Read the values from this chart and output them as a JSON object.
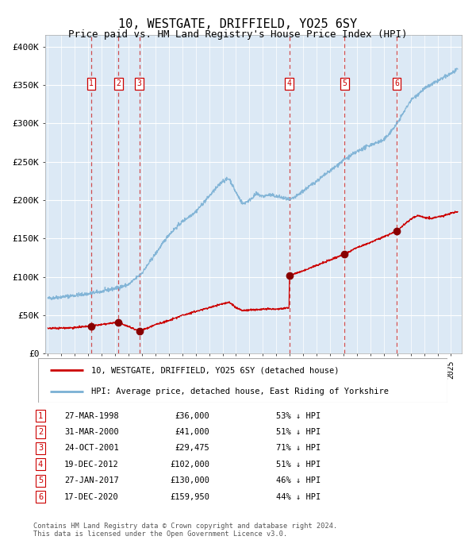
{
  "title": "10, WESTGATE, DRIFFIELD, YO25 6SY",
  "subtitle": "Price paid vs. HM Land Registry's House Price Index (HPI)",
  "title_fontsize": 11,
  "subtitle_fontsize": 9,
  "bg_color": "#dce9f5",
  "grid_color": "#ffffff",
  "ylabel_ticks": [
    "£0",
    "£50K",
    "£100K",
    "£150K",
    "£200K",
    "£250K",
    "£300K",
    "£350K",
    "£400K"
  ],
  "ytick_values": [
    0,
    50000,
    100000,
    150000,
    200000,
    250000,
    300000,
    350000,
    400000
  ],
  "ylim": [
    0,
    415000
  ],
  "xlim_start": 1994.8,
  "xlim_end": 2025.8,
  "legend_line1": "10, WESTGATE, DRIFFIELD, YO25 6SY (detached house)",
  "legend_line2": "HPI: Average price, detached house, East Riding of Yorkshire",
  "legend_color1": "#cc0000",
  "legend_color2": "#7ab0d4",
  "transactions": [
    {
      "num": 1,
      "date_label": "27-MAR-1998",
      "date_x": 1998.23,
      "price": 36000,
      "pct": "53%",
      "label": "1"
    },
    {
      "num": 2,
      "date_label": "31-MAR-2000",
      "date_x": 2000.25,
      "price": 41000,
      "pct": "51%",
      "label": "2"
    },
    {
      "num": 3,
      "date_label": "24-OCT-2001",
      "date_x": 2001.81,
      "price": 29475,
      "pct": "71%",
      "label": "3"
    },
    {
      "num": 4,
      "date_label": "19-DEC-2012",
      "date_x": 2012.97,
      "price": 102000,
      "pct": "51%",
      "label": "4"
    },
    {
      "num": 5,
      "date_label": "27-JAN-2017",
      "date_x": 2017.07,
      "price": 130000,
      "pct": "46%",
      "label": "5"
    },
    {
      "num": 6,
      "date_label": "17-DEC-2020",
      "date_x": 2020.96,
      "price": 159950,
      "pct": "44%",
      "label": "6"
    }
  ],
  "footer1": "Contains HM Land Registry data © Crown copyright and database right 2024.",
  "footer2": "This data is licensed under the Open Government Licence v3.0.",
  "table_rows": [
    [
      "1",
      "27-MAR-1998",
      "£36,000",
      "53% ↓ HPI"
    ],
    [
      "2",
      "31-MAR-2000",
      "£41,000",
      "51% ↓ HPI"
    ],
    [
      "3",
      "24-OCT-2001",
      "£29,475",
      "71% ↓ HPI"
    ],
    [
      "4",
      "19-DEC-2012",
      "£102,000",
      "51% ↓ HPI"
    ],
    [
      "5",
      "27-JAN-2017",
      "£130,000",
      "46% ↓ HPI"
    ],
    [
      "6",
      "17-DEC-2020",
      "£159,950",
      "44% ↓ HPI"
    ]
  ],
  "hpi_keypoints": [
    [
      1995.0,
      72000
    ],
    [
      1996.0,
      74000
    ],
    [
      1997.0,
      76000
    ],
    [
      1998.0,
      78000
    ],
    [
      1999.0,
      81000
    ],
    [
      2000.0,
      85000
    ],
    [
      2001.0,
      90000
    ],
    [
      2002.0,
      105000
    ],
    [
      2003.0,
      130000
    ],
    [
      2004.0,
      155000
    ],
    [
      2005.0,
      172000
    ],
    [
      2006.0,
      185000
    ],
    [
      2007.0,
      205000
    ],
    [
      2008.0,
      225000
    ],
    [
      2008.5,
      228000
    ],
    [
      2009.0,
      210000
    ],
    [
      2009.5,
      195000
    ],
    [
      2010.0,
      200000
    ],
    [
      2010.5,
      208000
    ],
    [
      2011.0,
      205000
    ],
    [
      2011.5,
      207000
    ],
    [
      2012.0,
      205000
    ],
    [
      2012.5,
      203000
    ],
    [
      2013.0,
      200000
    ],
    [
      2013.5,
      205000
    ],
    [
      2014.0,
      212000
    ],
    [
      2015.0,
      225000
    ],
    [
      2016.0,
      238000
    ],
    [
      2017.0,
      252000
    ],
    [
      2018.0,
      263000
    ],
    [
      2019.0,
      272000
    ],
    [
      2020.0,
      278000
    ],
    [
      2021.0,
      300000
    ],
    [
      2022.0,
      330000
    ],
    [
      2023.0,
      345000
    ],
    [
      2024.0,
      355000
    ],
    [
      2025.0,
      365000
    ],
    [
      2025.5,
      370000
    ]
  ],
  "red_keypoints": [
    [
      1995.0,
      33000
    ],
    [
      1997.0,
      34000
    ],
    [
      1998.23,
      36000
    ],
    [
      2000.25,
      41000
    ],
    [
      2001.81,
      29475
    ],
    [
      2002.5,
      34000
    ],
    [
      2003.0,
      38000
    ],
    [
      2004.0,
      43000
    ],
    [
      2005.0,
      50000
    ],
    [
      2006.0,
      55000
    ],
    [
      2007.0,
      60000
    ],
    [
      2008.0,
      65000
    ],
    [
      2008.5,
      67000
    ],
    [
      2009.0,
      60000
    ],
    [
      2009.5,
      56000
    ],
    [
      2010.0,
      57000
    ],
    [
      2011.0,
      58000
    ],
    [
      2012.0,
      58000
    ],
    [
      2012.96,
      60000
    ],
    [
      2012.97,
      102000
    ],
    [
      2013.5,
      105000
    ],
    [
      2014.0,
      108000
    ],
    [
      2015.0,
      115000
    ],
    [
      2016.0,
      122000
    ],
    [
      2017.07,
      130000
    ],
    [
      2018.0,
      138000
    ],
    [
      2019.0,
      145000
    ],
    [
      2020.0,
      152000
    ],
    [
      2020.96,
      159950
    ],
    [
      2021.5,
      168000
    ],
    [
      2022.0,
      175000
    ],
    [
      2022.5,
      180000
    ],
    [
      2023.0,
      178000
    ],
    [
      2023.5,
      176000
    ],
    [
      2024.0,
      178000
    ],
    [
      2024.5,
      180000
    ],
    [
      2025.0,
      183000
    ],
    [
      2025.5,
      185000
    ]
  ]
}
